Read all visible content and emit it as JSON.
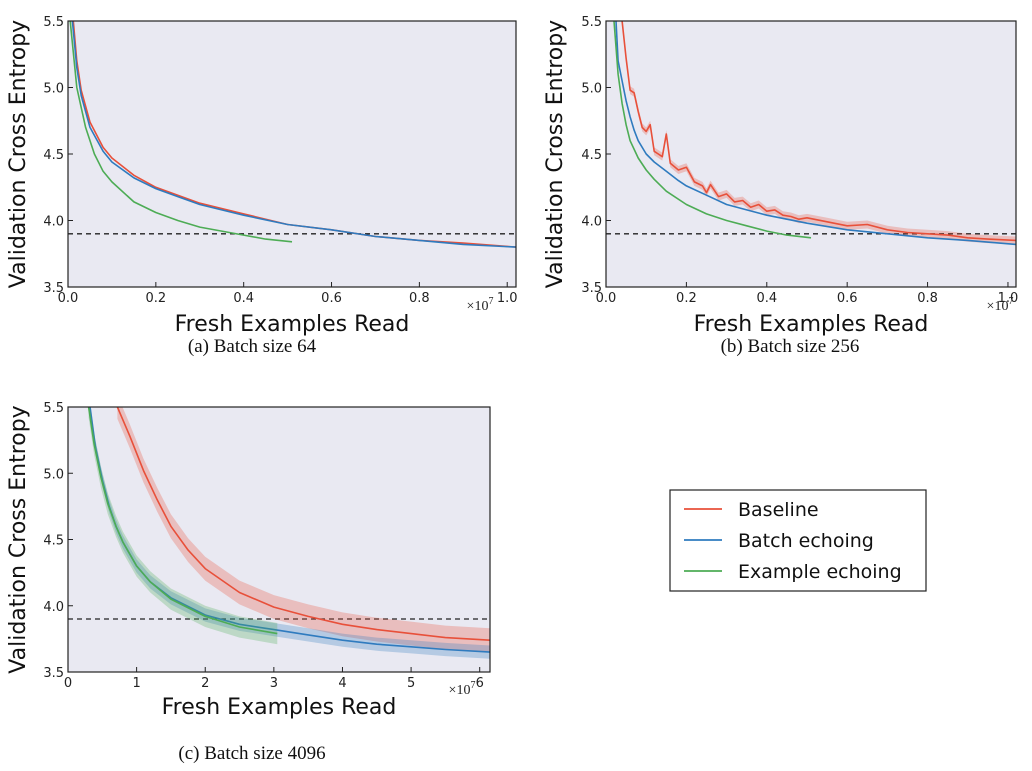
{
  "legend": {
    "entries": [
      {
        "label": "Baseline",
        "color": "#e8503a"
      },
      {
        "label": "Batch echoing",
        "color": "#2f7bbf"
      },
      {
        "label": "Example echoing",
        "color": "#4dac55"
      }
    ]
  },
  "chart_data": [
    {
      "id": "a",
      "type": "line",
      "caption": "(a) Batch size 64",
      "xlabel": "Fresh Examples Read",
      "ylabel": "Validation Cross Entropy",
      "x_multiplier": "×10",
      "x_multiplier_exp": "7",
      "xlim": [
        0,
        1.02
      ],
      "ylim": [
        3.5,
        5.5
      ],
      "xticks": [
        0.0,
        0.2,
        0.4,
        0.6,
        0.8,
        1.0
      ],
      "xtick_labels": [
        "0.0",
        "0.2",
        "0.4",
        "0.6",
        "0.8",
        "1.0"
      ],
      "yticks": [
        3.5,
        4.0,
        4.5,
        5.0,
        5.5
      ],
      "ytick_labels": [
        "3.5",
        "4.0",
        "4.5",
        "5.0",
        "5.5"
      ],
      "reference_line": 3.9,
      "background": "#e9e9f2",
      "series": [
        {
          "name": "Baseline",
          "color": "#e8503a",
          "band": 0,
          "points": [
            [
              0.012,
              5.5
            ],
            [
              0.02,
              5.2
            ],
            [
              0.03,
              4.98
            ],
            [
              0.05,
              4.74
            ],
            [
              0.08,
              4.55
            ],
            [
              0.1,
              4.47
            ],
            [
              0.15,
              4.34
            ],
            [
              0.2,
              4.25
            ],
            [
              0.25,
              4.19
            ],
            [
              0.3,
              4.13
            ],
            [
              0.35,
              4.09
            ],
            [
              0.4,
              4.05
            ],
            [
              0.5,
              3.97
            ],
            [
              0.6,
              3.93
            ],
            [
              0.7,
              3.88
            ],
            [
              0.8,
              3.85
            ],
            [
              0.9,
              3.83
            ],
            [
              1.02,
              3.8
            ]
          ]
        },
        {
          "name": "Batch echoing",
          "color": "#2f7bbf",
          "band": 0,
          "points": [
            [
              0.01,
              5.5
            ],
            [
              0.02,
              5.15
            ],
            [
              0.03,
              4.94
            ],
            [
              0.05,
              4.7
            ],
            [
              0.08,
              4.52
            ],
            [
              0.1,
              4.44
            ],
            [
              0.15,
              4.32
            ],
            [
              0.2,
              4.24
            ],
            [
              0.25,
              4.18
            ],
            [
              0.3,
              4.12
            ],
            [
              0.35,
              4.08
            ],
            [
              0.4,
              4.04
            ],
            [
              0.5,
              3.97
            ],
            [
              0.6,
              3.93
            ],
            [
              0.7,
              3.88
            ],
            [
              0.8,
              3.85
            ],
            [
              0.9,
              3.82
            ],
            [
              1.02,
              3.8
            ]
          ]
        },
        {
          "name": "Example echoing",
          "color": "#4dac55",
          "band": 0,
          "points": [
            [
              0.005,
              5.5
            ],
            [
              0.02,
              5.0
            ],
            [
              0.04,
              4.7
            ],
            [
              0.06,
              4.5
            ],
            [
              0.08,
              4.37
            ],
            [
              0.1,
              4.29
            ],
            [
              0.15,
              4.14
            ],
            [
              0.2,
              4.06
            ],
            [
              0.25,
              4.0
            ],
            [
              0.3,
              3.95
            ],
            [
              0.35,
              3.92
            ],
            [
              0.4,
              3.89
            ],
            [
              0.45,
              3.86
            ],
            [
              0.51,
              3.84
            ]
          ]
        }
      ]
    },
    {
      "id": "b",
      "type": "line",
      "caption": "(b) Batch size 256",
      "xlabel": "Fresh Examples Read",
      "ylabel": "Validation Cross Entropy",
      "x_multiplier": "×10",
      "x_multiplier_exp": "7",
      "xlim": [
        0,
        1.02
      ],
      "ylim": [
        3.5,
        5.5
      ],
      "xticks": [
        0.0,
        0.2,
        0.4,
        0.6,
        0.8,
        1.0
      ],
      "xtick_labels": [
        "0.0",
        "0.2",
        "0.4",
        "0.6",
        "0.8",
        "1.0"
      ],
      "yticks": [
        3.5,
        4.0,
        4.5,
        5.0,
        5.5
      ],
      "ytick_labels": [
        "3.5",
        "4.0",
        "4.5",
        "5.0",
        "5.5"
      ],
      "reference_line": 3.9,
      "background": "#e9e9f2",
      "series": [
        {
          "name": "Baseline",
          "color": "#e8503a",
          "band": 0.03,
          "points": [
            [
              0.04,
              5.5
            ],
            [
              0.05,
              5.22
            ],
            [
              0.06,
              4.98
            ],
            [
              0.07,
              4.96
            ],
            [
              0.08,
              4.82
            ],
            [
              0.09,
              4.7
            ],
            [
              0.1,
              4.67
            ],
            [
              0.11,
              4.72
            ],
            [
              0.12,
              4.52
            ],
            [
              0.13,
              4.5
            ],
            [
              0.14,
              4.48
            ],
            [
              0.15,
              4.65
            ],
            [
              0.16,
              4.43
            ],
            [
              0.18,
              4.38
            ],
            [
              0.2,
              4.4
            ],
            [
              0.22,
              4.29
            ],
            [
              0.24,
              4.26
            ],
            [
              0.25,
              4.21
            ],
            [
              0.26,
              4.27
            ],
            [
              0.28,
              4.18
            ],
            [
              0.3,
              4.2
            ],
            [
              0.32,
              4.14
            ],
            [
              0.34,
              4.15
            ],
            [
              0.36,
              4.1
            ],
            [
              0.38,
              4.12
            ],
            [
              0.4,
              4.07
            ],
            [
              0.42,
              4.08
            ],
            [
              0.44,
              4.04
            ],
            [
              0.46,
              4.03
            ],
            [
              0.48,
              4.01
            ],
            [
              0.5,
              4.02
            ],
            [
              0.55,
              3.99
            ],
            [
              0.6,
              3.96
            ],
            [
              0.65,
              3.97
            ],
            [
              0.7,
              3.93
            ],
            [
              0.75,
              3.91
            ],
            [
              0.8,
              3.9
            ],
            [
              0.85,
              3.89
            ],
            [
              0.9,
              3.87
            ],
            [
              0.95,
              3.86
            ],
            [
              1.02,
              3.85
            ]
          ]
        },
        {
          "name": "Batch echoing",
          "color": "#2f7bbf",
          "band": 0,
          "points": [
            [
              0.025,
              5.5
            ],
            [
              0.03,
              5.2
            ],
            [
              0.04,
              5.05
            ],
            [
              0.05,
              4.9
            ],
            [
              0.06,
              4.78
            ],
            [
              0.07,
              4.68
            ],
            [
              0.08,
              4.6
            ],
            [
              0.1,
              4.5
            ],
            [
              0.12,
              4.44
            ],
            [
              0.15,
              4.37
            ],
            [
              0.18,
              4.3
            ],
            [
              0.2,
              4.26
            ],
            [
              0.25,
              4.19
            ],
            [
              0.3,
              4.12
            ],
            [
              0.35,
              4.08
            ],
            [
              0.4,
              4.04
            ],
            [
              0.5,
              3.98
            ],
            [
              0.6,
              3.93
            ],
            [
              0.7,
              3.9
            ],
            [
              0.8,
              3.87
            ],
            [
              0.9,
              3.85
            ],
            [
              1.02,
              3.82
            ]
          ]
        },
        {
          "name": "Example echoing",
          "color": "#4dac55",
          "band": 0,
          "points": [
            [
              0.02,
              5.5
            ],
            [
              0.03,
              5.1
            ],
            [
              0.04,
              4.88
            ],
            [
              0.05,
              4.72
            ],
            [
              0.06,
              4.6
            ],
            [
              0.08,
              4.47
            ],
            [
              0.1,
              4.38
            ],
            [
              0.12,
              4.31
            ],
            [
              0.15,
              4.22
            ],
            [
              0.2,
              4.12
            ],
            [
              0.25,
              4.05
            ],
            [
              0.3,
              4.0
            ],
            [
              0.35,
              3.96
            ],
            [
              0.4,
              3.92
            ],
            [
              0.45,
              3.89
            ],
            [
              0.51,
              3.87
            ]
          ]
        }
      ]
    },
    {
      "id": "c",
      "type": "line",
      "caption": "(c) Batch size 4096",
      "xlabel": "Fresh Examples Read",
      "ylabel": "Validation Cross Entropy",
      "x_multiplier": "×10",
      "x_multiplier_exp": "7",
      "xlim": [
        0,
        6.15
      ],
      "ylim": [
        3.5,
        5.5
      ],
      "xticks": [
        0,
        1,
        2,
        3,
        4,
        5,
        6
      ],
      "xtick_labels": [
        "0",
        "1",
        "2",
        "3",
        "4",
        "5",
        "6"
      ],
      "yticks": [
        3.5,
        4.0,
        4.5,
        5.0,
        5.5
      ],
      "ytick_labels": [
        "3.5",
        "4.0",
        "4.5",
        "5.0",
        "5.5"
      ],
      "reference_line": 3.9,
      "background": "#e9e9f2",
      "series": [
        {
          "name": "Baseline",
          "color": "#e8503a",
          "band": 0.09,
          "points": [
            [
              0.72,
              5.5
            ],
            [
              0.9,
              5.28
            ],
            [
              1.1,
              5.02
            ],
            [
              1.3,
              4.8
            ],
            [
              1.5,
              4.6
            ],
            [
              1.75,
              4.42
            ],
            [
              2.0,
              4.28
            ],
            [
              2.5,
              4.1
            ],
            [
              3.0,
              3.99
            ],
            [
              3.5,
              3.92
            ],
            [
              4.0,
              3.86
            ],
            [
              4.5,
              3.82
            ],
            [
              5.0,
              3.79
            ],
            [
              5.5,
              3.76
            ],
            [
              6.15,
              3.74
            ]
          ]
        },
        {
          "name": "Batch echoing",
          "color": "#2f7bbf",
          "band": 0.05,
          "points": [
            [
              0.32,
              5.5
            ],
            [
              0.4,
              5.2
            ],
            [
              0.5,
              4.95
            ],
            [
              0.6,
              4.75
            ],
            [
              0.7,
              4.6
            ],
            [
              0.8,
              4.48
            ],
            [
              1.0,
              4.3
            ],
            [
              1.2,
              4.18
            ],
            [
              1.5,
              4.06
            ],
            [
              2.0,
              3.93
            ],
            [
              2.5,
              3.86
            ],
            [
              3.0,
              3.82
            ],
            [
              3.5,
              3.78
            ],
            [
              4.0,
              3.74
            ],
            [
              4.5,
              3.71
            ],
            [
              5.0,
              3.69
            ],
            [
              5.5,
              3.67
            ],
            [
              6.15,
              3.65
            ]
          ]
        },
        {
          "name": "Example echoing",
          "color": "#4dac55",
          "band": 0.08,
          "points": [
            [
              0.3,
              5.5
            ],
            [
              0.38,
              5.22
            ],
            [
              0.48,
              4.97
            ],
            [
              0.58,
              4.77
            ],
            [
              0.7,
              4.6
            ],
            [
              0.8,
              4.48
            ],
            [
              1.0,
              4.3
            ],
            [
              1.2,
              4.18
            ],
            [
              1.5,
              4.05
            ],
            [
              2.0,
              3.92
            ],
            [
              2.5,
              3.84
            ],
            [
              3.05,
              3.79
            ]
          ]
        }
      ]
    }
  ]
}
